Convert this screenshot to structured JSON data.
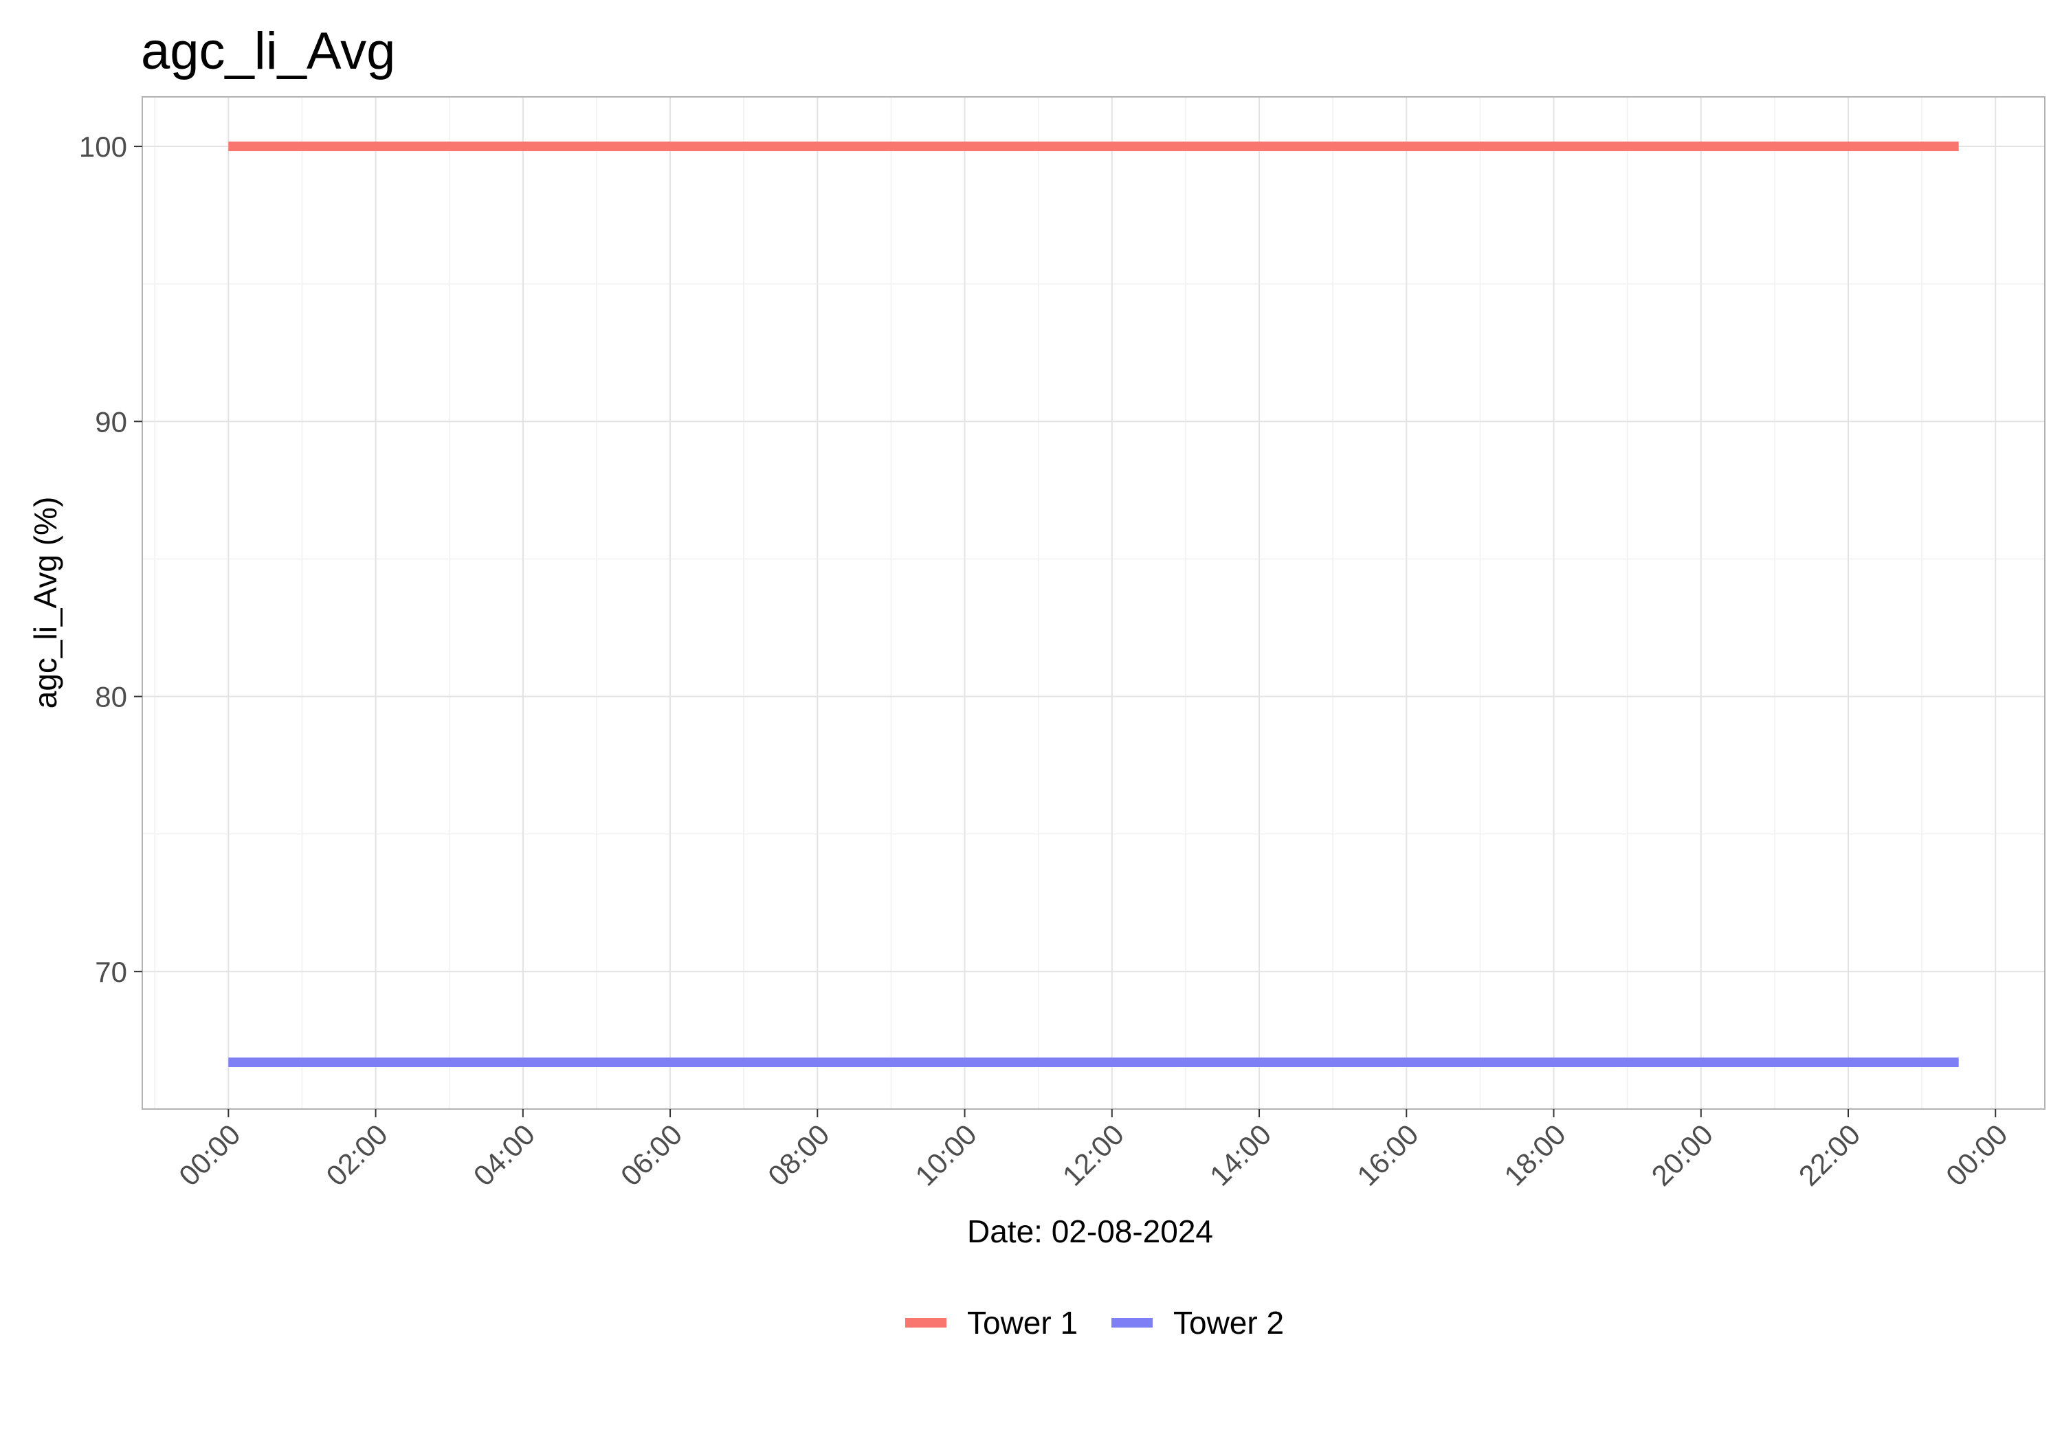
{
  "chart_data": {
    "type": "line",
    "title": "agc_li_Avg",
    "xlabel": "Date: 02-08-2024",
    "ylabel": "agc_li_Avg (%)",
    "x_tick_labels": [
      "00:00",
      "02:00",
      "04:00",
      "06:00",
      "08:00",
      "10:00",
      "12:00",
      "14:00",
      "16:00",
      "18:00",
      "20:00",
      "22:00",
      "00:00"
    ],
    "x_ticks_hours": [
      0,
      2,
      4,
      6,
      8,
      10,
      12,
      14,
      16,
      18,
      20,
      22,
      24
    ],
    "xlim_hours": [
      -1.17,
      24.67
    ],
    "y_ticks": [
      70,
      80,
      90,
      100
    ],
    "ylim": [
      65.0,
      101.8
    ],
    "grid": true,
    "legend_position": "bottom",
    "series": [
      {
        "name": "Tower 1",
        "color": "#F8766D",
        "x_hours": [
          0,
          23.5
        ],
        "values": [
          100,
          100
        ]
      },
      {
        "name": "Tower 2",
        "color": "#7F7FF5",
        "x_hours": [
          0,
          23.5
        ],
        "values": [
          66.7,
          66.7
        ]
      }
    ]
  }
}
